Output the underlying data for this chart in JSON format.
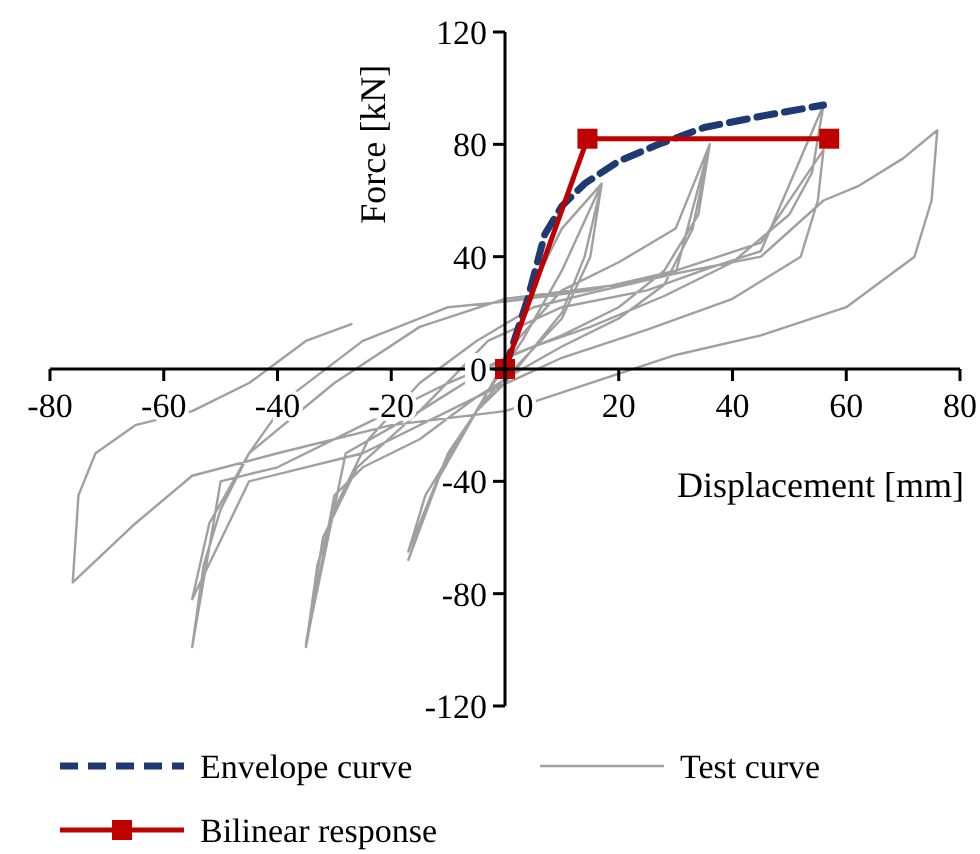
{
  "chart_data": {
    "type": "line",
    "xlabel": "Displacement [mm]",
    "ylabel": "Force [kN]",
    "xlim": [
      -80,
      80
    ],
    "xticks": [
      -80,
      -60,
      -40,
      -20,
      0,
      20,
      40,
      60,
      80
    ],
    "ylim": [
      -120,
      120
    ],
    "yticks": [
      -120,
      -80,
      -40,
      0,
      40,
      80,
      120
    ],
    "grid": false,
    "legend": "bottom",
    "series": [
      {
        "name": "Envelope curve",
        "color": "#1f3a73",
        "line_style": "dashed",
        "marker": "none",
        "x": [
          0,
          4,
          7,
          10,
          14,
          20,
          27,
          35,
          45,
          56
        ],
        "values": [
          0,
          25,
          48,
          58,
          66,
          74,
          80,
          86,
          90,
          94
        ]
      },
      {
        "name": "Test curve",
        "color": "#a0a0a0",
        "line_style": "solid",
        "marker": "none",
        "x": [
          0,
          5,
          10,
          17,
          14,
          10,
          4,
          0,
          -5,
          -10,
          -17,
          -14,
          -8,
          -3,
          3,
          10,
          17,
          15,
          10,
          3,
          -4,
          -10,
          -17,
          -12,
          -5,
          2,
          10,
          20,
          30,
          36,
          33,
          28,
          20,
          10,
          3,
          -5,
          -15,
          -25,
          -30,
          -35,
          -33,
          -30,
          -24,
          -15,
          -5,
          5,
          15,
          30,
          36,
          34,
          28,
          20,
          10,
          0,
          -15,
          -28,
          -35,
          -32,
          -26,
          -15,
          -3,
          10,
          25,
          36,
          45,
          56,
          54,
          50,
          40,
          28,
          15,
          5,
          -10,
          -25,
          -40,
          -50,
          -55,
          -53,
          -50,
          -45,
          -38,
          -25,
          -10,
          0,
          15,
          30,
          45,
          56,
          55,
          52,
          40,
          25,
          10,
          -5,
          -25,
          -45,
          -55,
          -52,
          -45,
          -30,
          -15,
          0,
          20,
          45,
          56,
          62,
          70,
          76,
          75,
          72,
          60,
          45,
          30,
          15,
          0,
          -20,
          -40,
          -55,
          -65,
          -76,
          -75,
          -72,
          -65,
          -55,
          -45,
          -35,
          -27
        ],
        "values": [
          0,
          30,
          50,
          66,
          40,
          20,
          5,
          -5,
          -15,
          -30,
          -65,
          -45,
          -25,
          -8,
          10,
          35,
          66,
          40,
          18,
          3,
          -12,
          -30,
          -68,
          -40,
          -15,
          10,
          28,
          38,
          50,
          80,
          50,
          30,
          18,
          8,
          0,
          -10,
          -25,
          -35,
          -45,
          -99,
          -70,
          -50,
          -25,
          -5,
          10,
          22,
          27,
          34,
          80,
          55,
          35,
          22,
          12,
          4,
          -15,
          -30,
          -98,
          -60,
          -35,
          -15,
          10,
          22,
          28,
          36,
          42,
          94,
          70,
          55,
          38,
          26,
          15,
          8,
          -5,
          -20,
          -35,
          -40,
          -99,
          -70,
          -50,
          -30,
          -10,
          10,
          22,
          24,
          28,
          35,
          45,
          78,
          60,
          40,
          25,
          14,
          4,
          -10,
          -30,
          -40,
          -82,
          -55,
          -30,
          -5,
          15,
          25,
          30,
          40,
          60,
          65,
          75,
          85,
          60,
          40,
          22,
          12,
          5,
          -5,
          -15,
          -20,
          -30,
          -38,
          -55,
          -76,
          -45,
          -30,
          -20,
          -15,
          -5,
          10,
          16
        ]
      },
      {
        "name": "Bilinear response",
        "color": "#c00000",
        "line_style": "solid",
        "marker": "square",
        "x": [
          0,
          14.5,
          57
        ],
        "values": [
          0,
          82,
          82
        ]
      }
    ]
  }
}
